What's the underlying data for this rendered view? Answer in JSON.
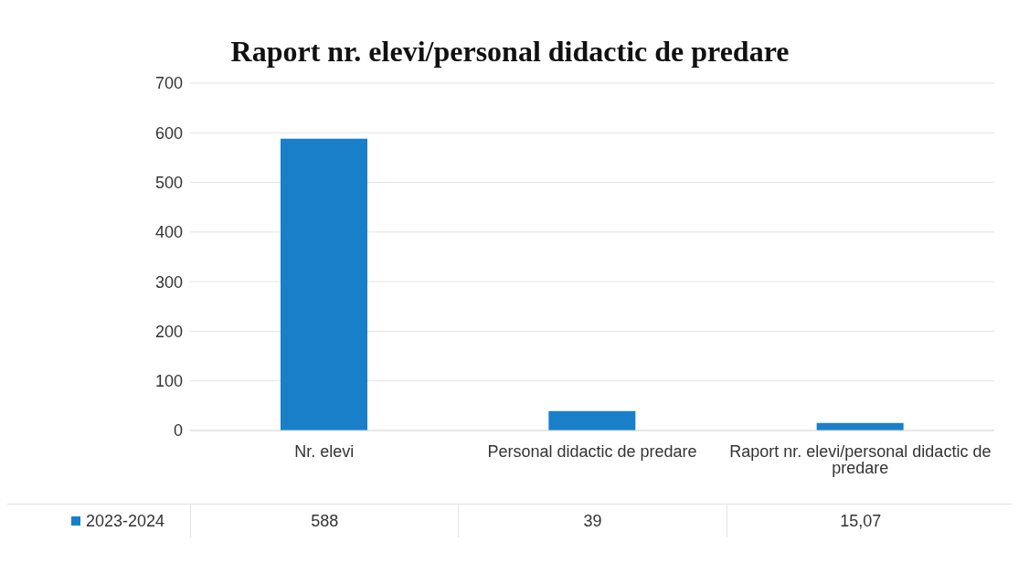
{
  "chart_data": {
    "type": "bar",
    "title": "Raport nr. elevi/personal didactic de predare",
    "categories": [
      "Nr. elevi",
      "Personal didactic de predare",
      "Raport nr. elevi/personal didactic de predare"
    ],
    "series": [
      {
        "name": "2023-2024",
        "color": "#1a7fc9",
        "values": [
          588,
          39,
          15.07
        ],
        "value_labels": [
          "588",
          "39",
          "15,07"
        ]
      }
    ],
    "ylim": [
      0,
      700
    ],
    "yticks": [
      0,
      100,
      200,
      300,
      400,
      500,
      600,
      700
    ],
    "grid": "y",
    "legend": "bottom"
  }
}
